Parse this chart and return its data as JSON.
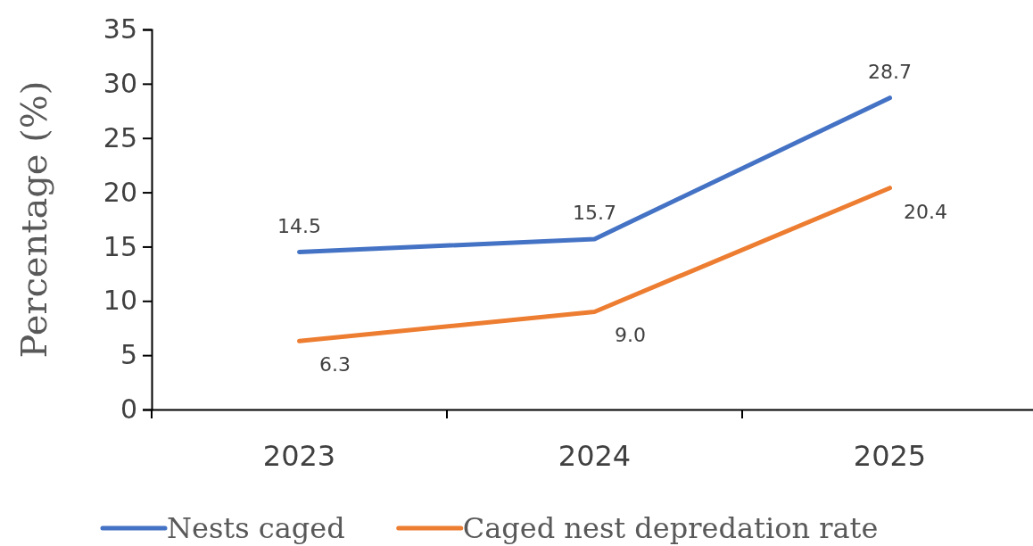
{
  "chart_data": {
    "type": "line",
    "ylabel": "Percentage (%)",
    "categories": [
      "2023",
      "2024",
      "2025"
    ],
    "series": [
      {
        "name": "Nests caged",
        "color": "#4472c4",
        "values": [
          14.5,
          15.7,
          28.7
        ],
        "value_labels": [
          "14.5",
          "15.7",
          "28.7"
        ]
      },
      {
        "name": "Caged nest depredation rate",
        "color": "#ed7d31",
        "values": [
          6.3,
          9.0,
          20.4
        ],
        "value_labels": [
          "6.3",
          "9.0",
          "20.4"
        ]
      }
    ],
    "ylim": [
      0,
      35
    ],
    "yticks": [
      0,
      5,
      10,
      15,
      20,
      25,
      30,
      35
    ],
    "legend": "bottom",
    "grid": false,
    "marker": "none",
    "line_style": "solid"
  }
}
